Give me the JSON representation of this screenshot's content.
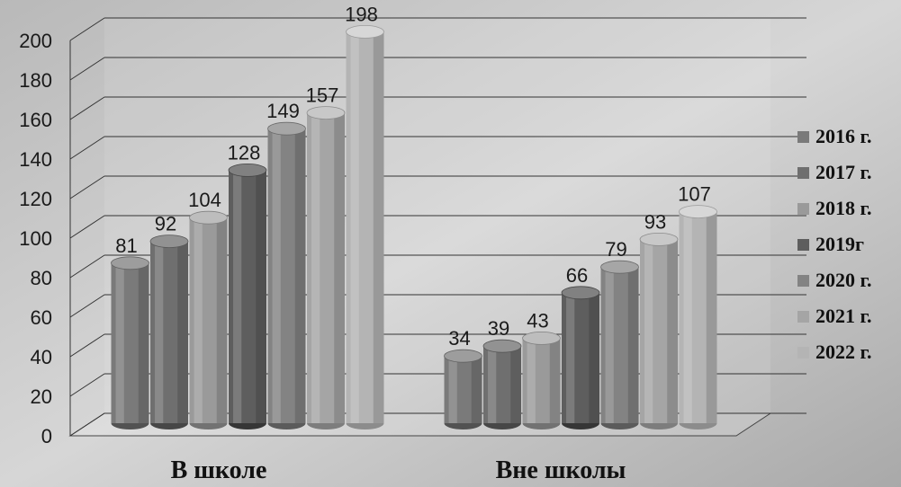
{
  "chart_data": {
    "type": "bar",
    "categories": [
      "В школе",
      "Вне школы"
    ],
    "series": [
      {
        "name": "2016 г.",
        "values": [
          81,
          34
        ]
      },
      {
        "name": "2017 г.",
        "values": [
          92,
          39
        ]
      },
      {
        "name": "2018 г.",
        "values": [
          104,
          43
        ]
      },
      {
        "name": "2019г",
        "values": [
          128,
          66
        ]
      },
      {
        "name": "2020 г.",
        "values": [
          149,
          79
        ]
      },
      {
        "name": "2021 г.",
        "values": [
          157,
          93
        ]
      },
      {
        "name": "2022 г.",
        "values": [
          198,
          107
        ]
      }
    ],
    "ylim": [
      0,
      200
    ],
    "yticks": [
      0,
      20,
      40,
      60,
      80,
      100,
      120,
      140,
      160,
      180,
      200
    ],
    "grid": true,
    "legend": "right",
    "style": "3d-cylinder",
    "colors": [
      "#7a7a7a",
      "#6f6f6f",
      "#9a9a9a",
      "#5e5e5e",
      "#838383",
      "#a5a5a5",
      "#b4b4b4"
    ]
  }
}
